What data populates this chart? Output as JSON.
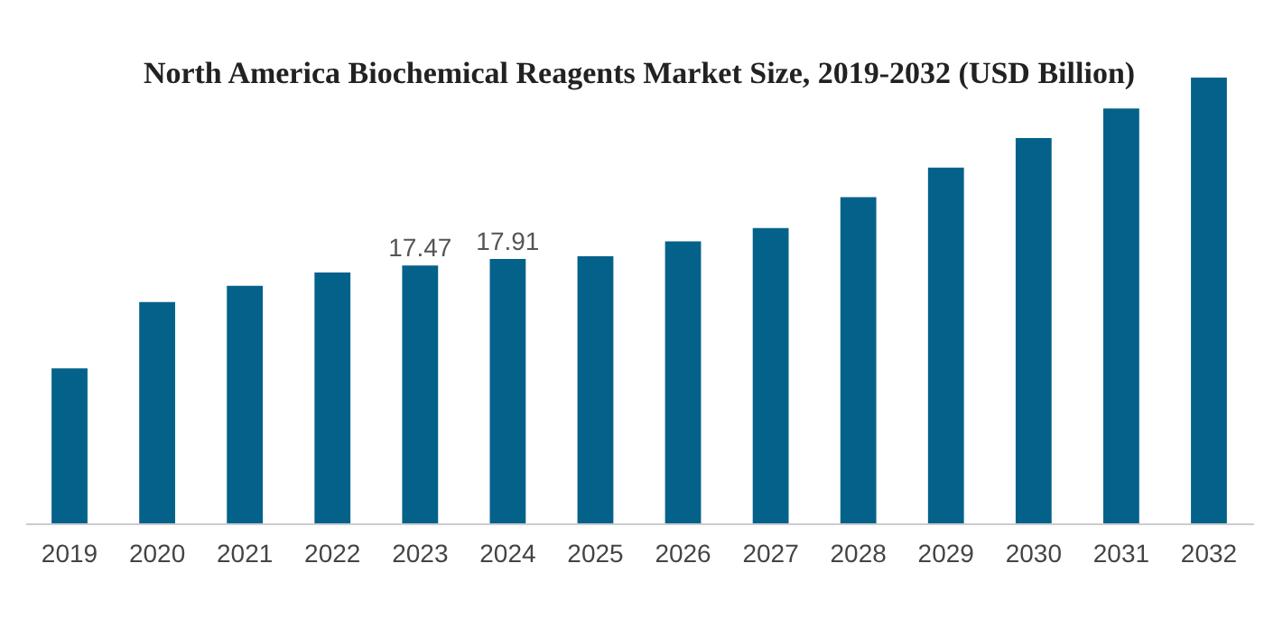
{
  "chart_data": {
    "type": "bar",
    "title": "North America Biochemical Reagents Market Size, 2019-2032 (USD Billion)",
    "categories": [
      "2019",
      "2020",
      "2021",
      "2022",
      "2023",
      "2024",
      "2025",
      "2026",
      "2027",
      "2028",
      "2029",
      "2030",
      "2031",
      "2032"
    ],
    "values": [
      10.5,
      15.0,
      16.1,
      17.0,
      17.47,
      17.91,
      18.1,
      19.1,
      20.0,
      22.1,
      24.1,
      26.1,
      28.1,
      30.2
    ],
    "value_labels": [
      null,
      null,
      null,
      null,
      "17.47",
      "17.91",
      null,
      null,
      null,
      null,
      null,
      null,
      null,
      null
    ],
    "color": "#04628a",
    "grid": false
  }
}
